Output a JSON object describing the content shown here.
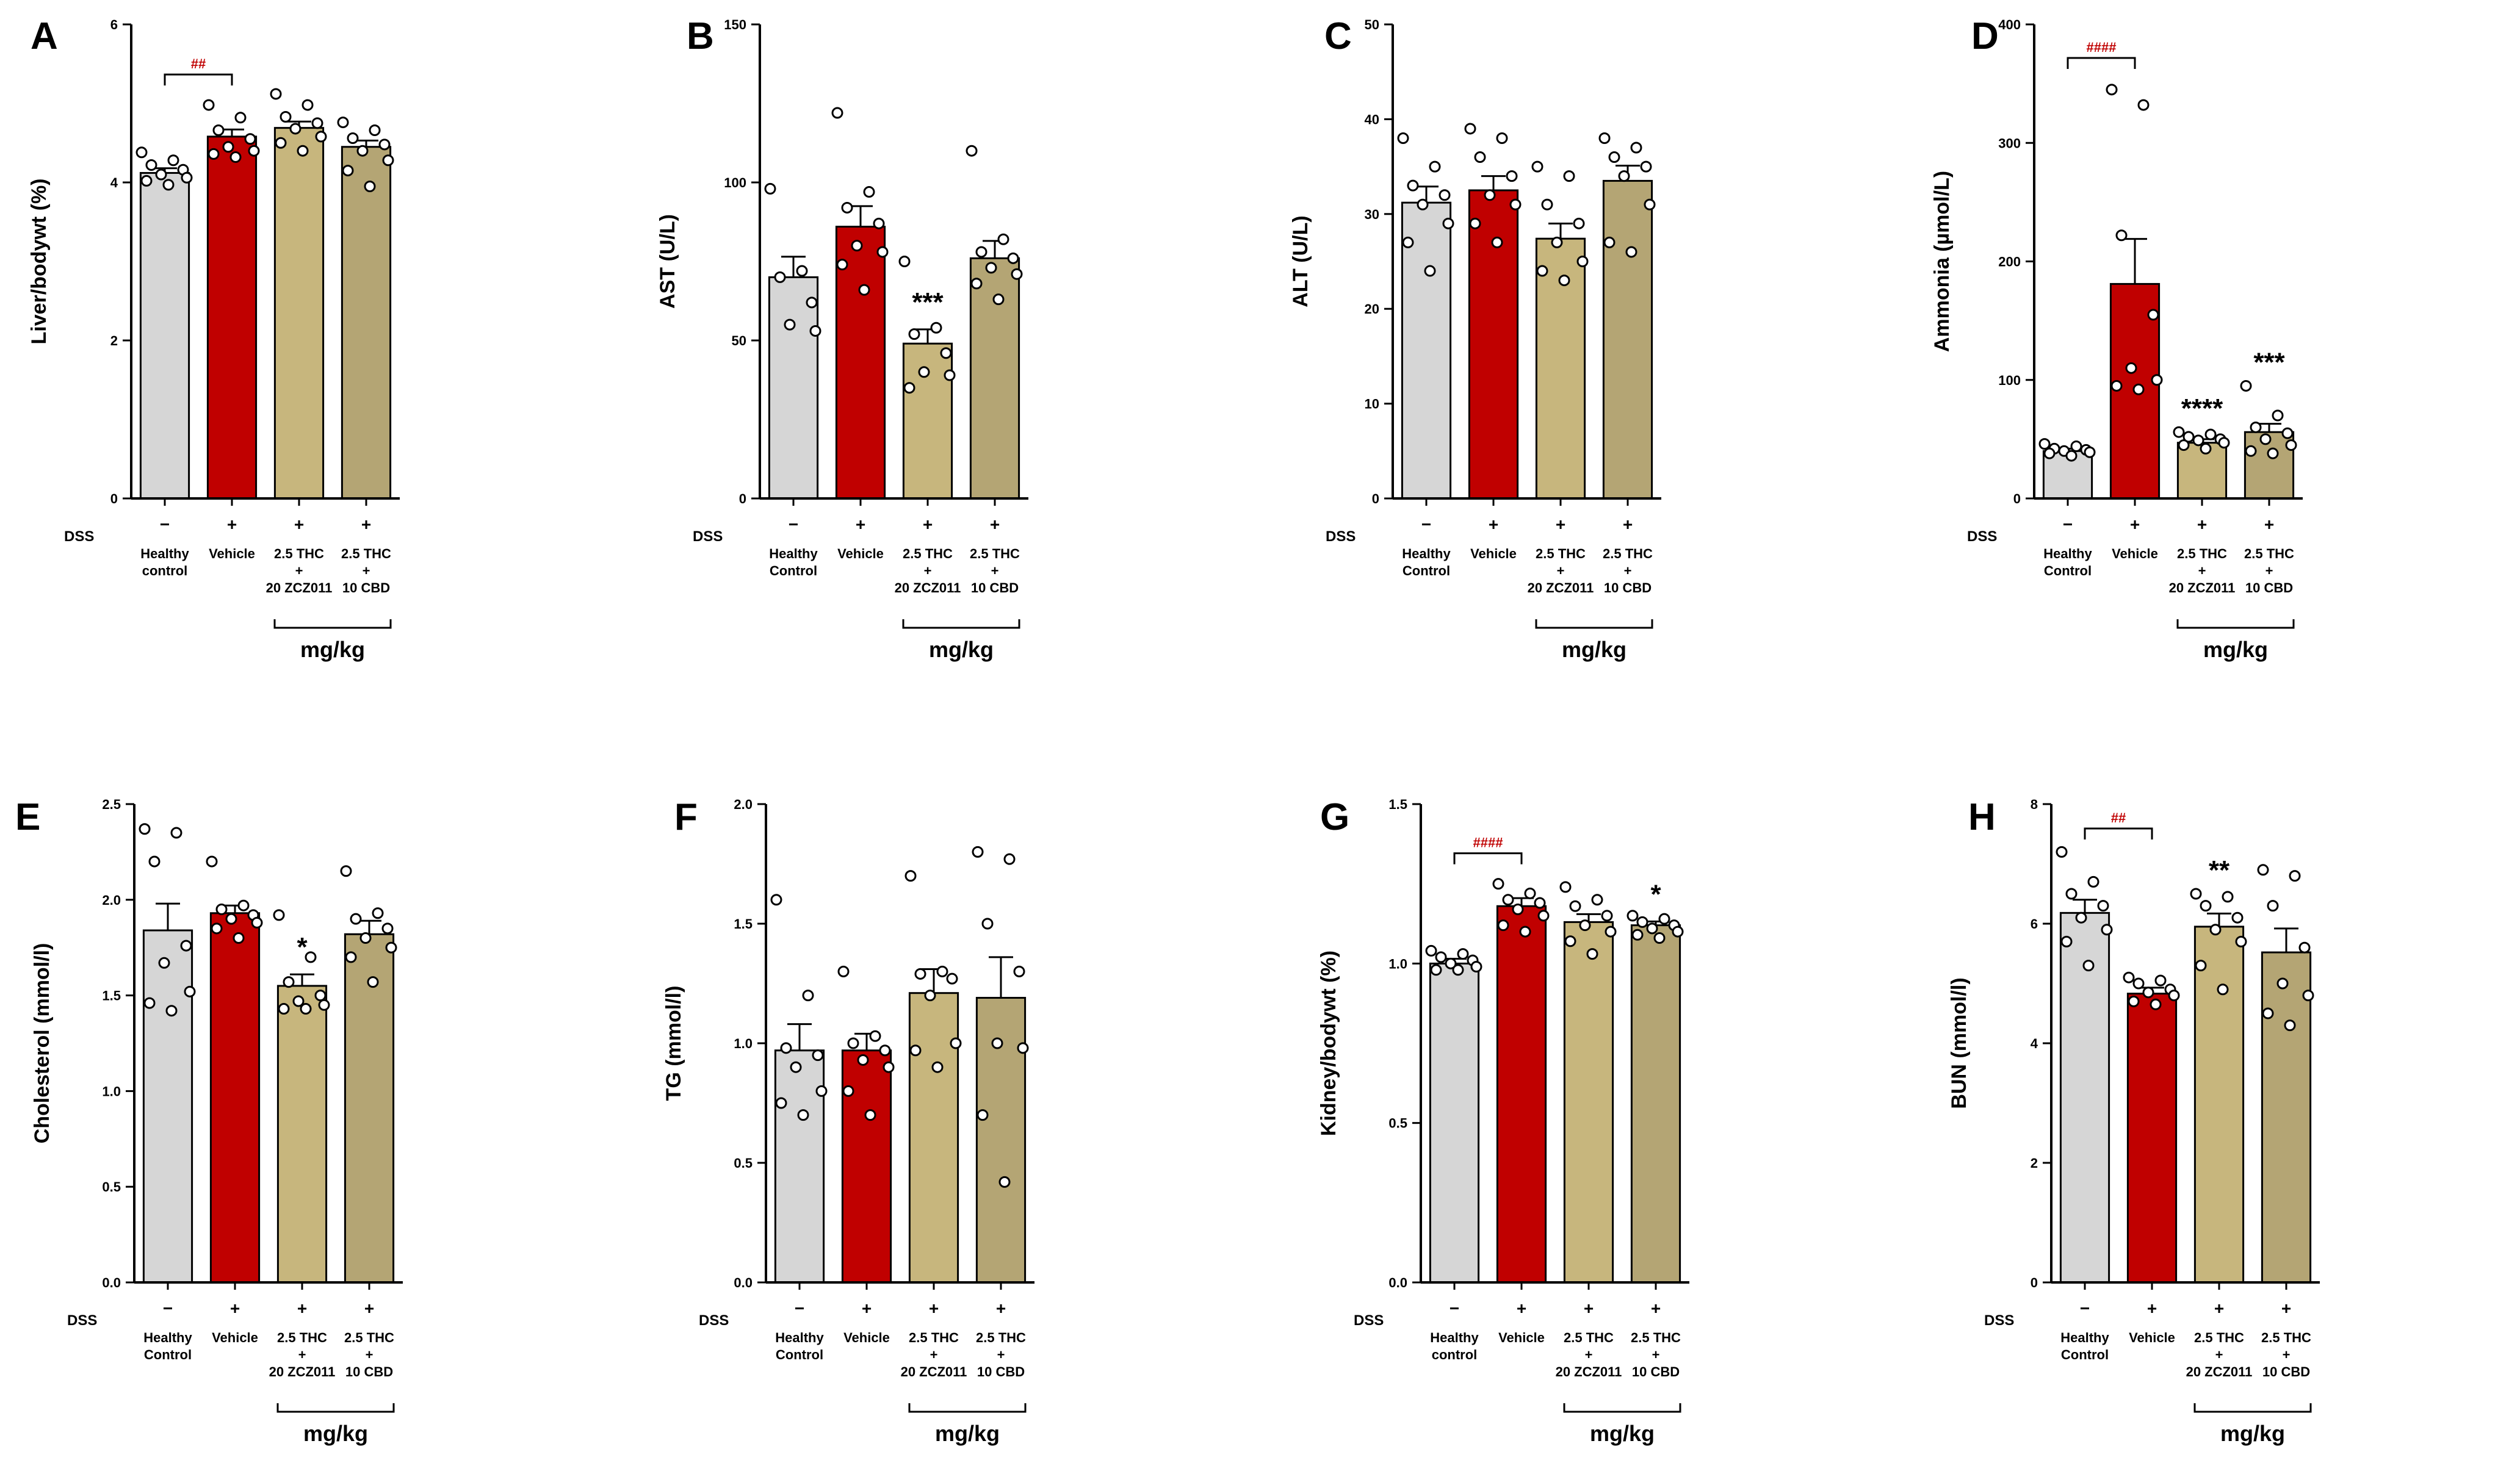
{
  "colors": {
    "healthy": "#d6d6d6",
    "vehicle": "#c00000",
    "zcz": "#c7b67d",
    "cbd": "#b4a574",
    "hash": "#c00000"
  },
  "chart_data": [
    {
      "panel": "A",
      "type": "bar",
      "ylabel": "Liver/bodywt (%)",
      "ylim": [
        0,
        6
      ],
      "yticks": [
        "0",
        "2",
        "4",
        "6"
      ],
      "x_labels": [
        [
          "Healthy",
          "control"
        ],
        [
          "Vehicle"
        ],
        [
          "2.5 THC",
          "+",
          "20 ZCZ011"
        ],
        [
          "2.5 THC",
          "+",
          "10 CBD"
        ]
      ],
      "dss_signs": [
        "−",
        "+",
        "+",
        "+"
      ],
      "dss_label": "DSS",
      "unit": "mg/kg",
      "values": [
        4.12,
        4.58,
        4.69,
        4.45
      ],
      "errors": [
        0.06,
        0.09,
        0.08,
        0.08
      ],
      "points": [
        [
          4.38,
          4.28,
          4.22,
          4.16,
          4.1,
          4.06,
          4.02,
          3.97
        ],
        [
          4.98,
          4.82,
          4.66,
          4.55,
          4.45,
          4.4,
          4.36,
          4.32
        ],
        [
          5.12,
          4.98,
          4.83,
          4.75,
          4.68,
          4.58,
          4.5,
          4.4
        ],
        [
          4.76,
          4.66,
          4.56,
          4.48,
          4.4,
          4.28,
          4.15,
          3.95
        ]
      ],
      "annotations": [
        "",
        "",
        "",
        ""
      ],
      "bracket": {
        "from": 0,
        "to": 1,
        "label": "##"
      }
    },
    {
      "panel": "B",
      "type": "bar",
      "ylabel": "AST (U/L)",
      "ylim": [
        0,
        150
      ],
      "yticks": [
        "0",
        "50",
        "100",
        "150"
      ],
      "x_labels": [
        [
          "Healthy",
          "Control"
        ],
        [
          "Vehicle"
        ],
        [
          "2.5 THC",
          "+",
          "20 ZCZ011"
        ],
        [
          "2.5 THC",
          "+",
          "10 CBD"
        ]
      ],
      "dss_signs": [
        "−",
        "+",
        "+",
        "+"
      ],
      "dss_label": "DSS",
      "unit": "mg/kg",
      "values": [
        70,
        86,
        49,
        76
      ],
      "errors": [
        6.5,
        6.5,
        4.5,
        5.5
      ],
      "points": [
        [
          98,
          72,
          70,
          62,
          55,
          53
        ],
        [
          122,
          97,
          92,
          87,
          80,
          78,
          74,
          66
        ],
        [
          75,
          54,
          52,
          46,
          40,
          39,
          35
        ],
        [
          110,
          82,
          78,
          76,
          73,
          71,
          68,
          63
        ]
      ],
      "annotations": [
        "",
        "",
        "***",
        ""
      ],
      "bracket": null
    },
    {
      "panel": "C",
      "type": "bar",
      "ylabel": "ALT (U/L)",
      "ylim": [
        0,
        50
      ],
      "yticks": [
        "0",
        "10",
        "20",
        "30",
        "40",
        "50"
      ],
      "x_labels": [
        [
          "Healthy",
          "Control"
        ],
        [
          "Vehicle"
        ],
        [
          "2.5 THC",
          "+",
          "20 ZCZ011"
        ],
        [
          "2.5 THC",
          "+",
          "10 CBD"
        ]
      ],
      "dss_signs": [
        "−",
        "+",
        "+",
        "+"
      ],
      "dss_label": "DSS",
      "unit": "mg/kg",
      "values": [
        31.2,
        32.5,
        27.4,
        33.5
      ],
      "errors": [
        1.7,
        1.5,
        1.6,
        1.6
      ],
      "points": [
        [
          38,
          35,
          33,
          32,
          31,
          29,
          27,
          24
        ],
        [
          39,
          38,
          36,
          34,
          32,
          31,
          29,
          27
        ],
        [
          35,
          34,
          31,
          29,
          27,
          25,
          24,
          23
        ],
        [
          38,
          37,
          36,
          35,
          34,
          31,
          27,
          26
        ]
      ],
      "annotations": [
        "",
        "",
        "",
        ""
      ],
      "bracket": null
    },
    {
      "panel": "D",
      "type": "bar",
      "ylabel": "Ammonia (µmol/L)",
      "ylim": [
        0,
        400
      ],
      "yticks": [
        "0",
        "100",
        "200",
        "300",
        "400"
      ],
      "x_labels": [
        [
          "Healthy",
          "Control"
        ],
        [
          "Vehicle"
        ],
        [
          "2.5 THC",
          "+",
          "20 ZCZ011"
        ],
        [
          "2.5 THC",
          "+",
          "10 CBD"
        ]
      ],
      "dss_signs": [
        "−",
        "+",
        "+",
        "+"
      ],
      "dss_label": "DSS",
      "unit": "mg/kg",
      "values": [
        40,
        181,
        47,
        56
      ],
      "errors": [
        2,
        38,
        3,
        7
      ],
      "points": [
        [
          46,
          44,
          42,
          41,
          40,
          39,
          38,
          36
        ],
        [
          345,
          332,
          222,
          155,
          110,
          100,
          95,
          92
        ],
        [
          56,
          54,
          52,
          50,
          49,
          47,
          45,
          42
        ],
        [
          95,
          70,
          60,
          55,
          50,
          45,
          40,
          38
        ]
      ],
      "annotations": [
        "",
        "",
        "****",
        "***"
      ],
      "bracket": {
        "from": 0,
        "to": 1,
        "label": "####"
      }
    },
    {
      "panel": "E",
      "type": "bar",
      "ylabel": "Cholesterol (mmol/l)",
      "ylim": [
        0,
        2.5
      ],
      "yticks": [
        "0.0",
        "0.5",
        "1.0",
        "1.5",
        "2.0",
        "2.5"
      ],
      "x_labels": [
        [
          "Healthy",
          "Control"
        ],
        [
          "Vehicle"
        ],
        [
          "2.5 THC",
          "+",
          "20 ZCZ011"
        ],
        [
          "2.5 THC",
          "+",
          "10 CBD"
        ]
      ],
      "dss_signs": [
        "−",
        "+",
        "+",
        "+"
      ],
      "dss_label": "DSS",
      "unit": "mg/kg",
      "values": [
        1.84,
        1.93,
        1.55,
        1.82
      ],
      "errors": [
        0.14,
        0.04,
        0.06,
        0.07
      ],
      "points": [
        [
          2.37,
          2.35,
          2.2,
          1.76,
          1.67,
          1.52,
          1.46,
          1.42
        ],
        [
          2.2,
          1.97,
          1.95,
          1.92,
          1.9,
          1.88,
          1.85,
          1.8
        ],
        [
          1.92,
          1.7,
          1.57,
          1.5,
          1.47,
          1.45,
          1.43,
          1.43
        ],
        [
          2.15,
          1.93,
          1.9,
          1.85,
          1.8,
          1.75,
          1.7,
          1.57
        ]
      ],
      "annotations": [
        "",
        "",
        "*",
        ""
      ],
      "bracket": null
    },
    {
      "panel": "F",
      "type": "bar",
      "ylabel": "TG (mmol/l)",
      "ylim": [
        0,
        2.0
      ],
      "yticks": [
        "0.0",
        "0.5",
        "1.0",
        "1.5",
        "2.0"
      ],
      "x_labels": [
        [
          "Healthy",
          "Control"
        ],
        [
          "Vehicle"
        ],
        [
          "2.5 THC",
          "+",
          "20 ZCZ011"
        ],
        [
          "2.5 THC",
          "+",
          "10 CBD"
        ]
      ],
      "dss_signs": [
        "−",
        "+",
        "+",
        "+"
      ],
      "dss_label": "DSS",
      "unit": "mg/kg",
      "values": [
        0.97,
        0.97,
        1.21,
        1.19
      ],
      "errors": [
        0.11,
        0.07,
        0.1,
        0.17
      ],
      "points": [
        [
          1.6,
          1.2,
          0.98,
          0.95,
          0.9,
          0.8,
          0.75,
          0.7
        ],
        [
          1.3,
          1.03,
          1.0,
          0.97,
          0.93,
          0.9,
          0.8,
          0.7
        ],
        [
          1.7,
          1.3,
          1.29,
          1.27,
          1.2,
          1.0,
          0.97,
          0.9
        ],
        [
          1.8,
          1.77,
          1.5,
          1.3,
          1.0,
          0.98,
          0.7,
          0.42
        ]
      ],
      "annotations": [
        "",
        "",
        "",
        ""
      ],
      "bracket": null
    },
    {
      "panel": "G",
      "type": "bar",
      "ylabel": "Kidney/bodywt (%)",
      "ylim": [
        0,
        1.5
      ],
      "yticks": [
        "0.0",
        "0.5",
        "1.0",
        "1.5"
      ],
      "x_labels": [
        [
          "Healthy",
          "control"
        ],
        [
          "Vehicle"
        ],
        [
          "2.5 THC",
          "+",
          "20 ZCZ011"
        ],
        [
          "2.5 THC",
          "+",
          "10 CBD"
        ]
      ],
      "dss_signs": [
        "−",
        "+",
        "+",
        "+"
      ],
      "dss_label": "DSS",
      "unit": "mg/kg",
      "values": [
        1.0,
        1.18,
        1.13,
        1.12
      ],
      "errors": [
        0.015,
        0.025,
        0.025,
        0.012
      ],
      "points": [
        [
          1.04,
          1.03,
          1.02,
          1.01,
          1.0,
          0.99,
          0.98,
          0.98
        ],
        [
          1.25,
          1.22,
          1.2,
          1.19,
          1.17,
          1.15,
          1.12,
          1.1
        ],
        [
          1.24,
          1.2,
          1.18,
          1.15,
          1.12,
          1.1,
          1.07,
          1.03
        ],
        [
          1.15,
          1.14,
          1.13,
          1.12,
          1.11,
          1.1,
          1.09,
          1.08
        ]
      ],
      "annotations": [
        "",
        "",
        "",
        "*"
      ],
      "bracket": {
        "from": 0,
        "to": 1,
        "label": "####"
      }
    },
    {
      "panel": "H",
      "type": "bar",
      "ylabel": "BUN (mmol/l)",
      "ylim": [
        0,
        8
      ],
      "yticks": [
        "0",
        "2",
        "4",
        "6",
        "8"
      ],
      "x_labels": [
        [
          "Healthy",
          "Control"
        ],
        [
          "Vehicle"
        ],
        [
          "2.5 THC",
          "+",
          "20 ZCZ011"
        ],
        [
          "2.5 THC",
          "+",
          "10 CBD"
        ]
      ],
      "dss_signs": [
        "−",
        "+",
        "+",
        "+"
      ],
      "dss_label": "DSS",
      "unit": "mg/kg",
      "values": [
        6.18,
        4.83,
        5.95,
        5.52
      ],
      "errors": [
        0.22,
        0.1,
        0.22,
        0.4
      ],
      "points": [
        [
          7.2,
          6.7,
          6.5,
          6.3,
          6.1,
          5.9,
          5.7,
          5.3
        ],
        [
          5.1,
          5.05,
          5.0,
          4.9,
          4.85,
          4.8,
          4.7,
          4.65
        ],
        [
          6.5,
          6.45,
          6.3,
          6.1,
          5.9,
          5.7,
          5.3,
          4.9
        ],
        [
          6.9,
          6.8,
          6.3,
          5.6,
          5.0,
          4.8,
          4.5,
          4.3
        ]
      ],
      "annotations": [
        "",
        "",
        "**",
        ""
      ],
      "bracket": {
        "from": 0,
        "to": 1,
        "label": "##"
      }
    }
  ]
}
